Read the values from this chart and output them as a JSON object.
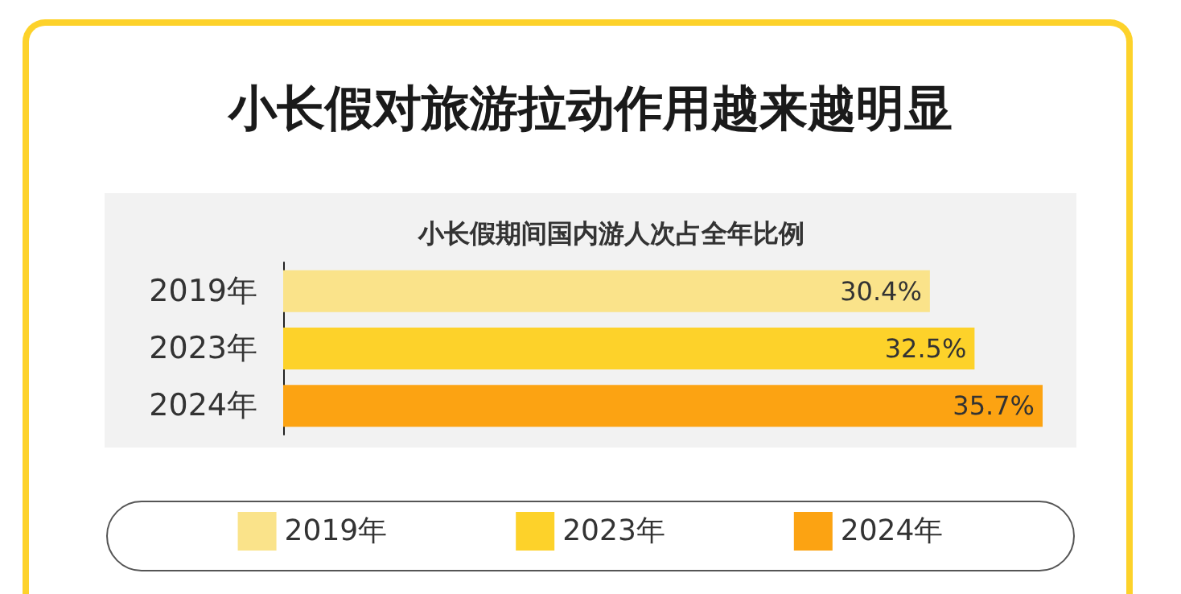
{
  "chart_data": {
    "type": "bar",
    "orientation": "horizontal",
    "title": "小长假对旅游拉动作用越来越明显",
    "subtitle": "小长假期间国内游人次占全年比例",
    "categories": [
      "2019年",
      "2023年",
      "2024年"
    ],
    "series": [
      {
        "name": "2019年",
        "color": "#fae38a",
        "values": [
          30.4,
          null,
          null
        ],
        "value_labels": [
          "30.4%",
          null,
          null
        ]
      },
      {
        "name": "2023年",
        "color": "#fdd22a",
        "values": [
          null,
          32.5,
          null
        ],
        "value_labels": [
          null,
          "32.5%",
          null
        ]
      },
      {
        "name": "2024年",
        "color": "#fca312",
        "values": [
          null,
          null,
          35.7
        ],
        "value_labels": [
          null,
          null,
          "35.7%"
        ]
      }
    ],
    "legend": "bottom"
  }
}
